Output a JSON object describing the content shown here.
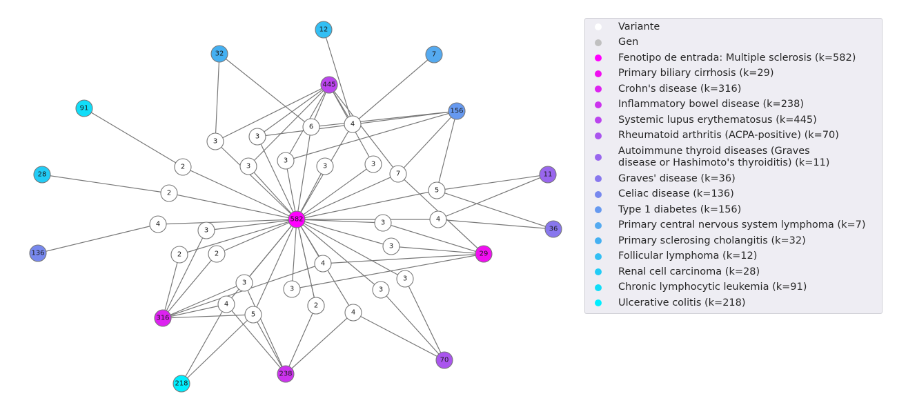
{
  "legend": {
    "items": [
      {
        "label": "Variante",
        "color": "#ffffff"
      },
      {
        "label": "Gen",
        "color": "#c0c0c0"
      },
      {
        "label": "Fenotipo de entrada: Multiple sclerosis (k=582)",
        "color": "#ff00ff"
      },
      {
        "label": "Primary biliary cirrhosis (k=29)",
        "color": "#f00ff0"
      },
      {
        "label": "Crohn's disease (k=316)",
        "color": "#dd22f0"
      },
      {
        "label": "Inflammatory bowel disease (k=238)",
        "color": "#cc33ee"
      },
      {
        "label": "Systemic lupus erythematosus (k=445)",
        "color": "#bb44ee"
      },
      {
        "label": "Rheumatoid arthritis (ACPA-positive) (k=70)",
        "color": "#aa55ee"
      },
      {
        "label": "Autoimmune thyroid diseases (Graves\ndisease or Hashimoto's thyroiditis) (k=11)",
        "color": "#9966ee"
      },
      {
        "label": "Graves' disease (k=36)",
        "color": "#8877ee"
      },
      {
        "label": "Celiac disease (k=136)",
        "color": "#7788ee"
      },
      {
        "label": "Type 1 diabetes (k=156)",
        "color": "#6699f0"
      },
      {
        "label": "Primary central nervous system lymphoma (k=7)",
        "color": "#55aaf0"
      },
      {
        "label": "Primary sclerosing cholangitis (k=32)",
        "color": "#44b0f2"
      },
      {
        "label": "Follicular lymphoma (k=12)",
        "color": "#33bff4"
      },
      {
        "label": "Renal cell carcinoma (k=28)",
        "color": "#22ccf6"
      },
      {
        "label": "Chronic lymphocytic leukemia (k=91)",
        "color": "#11ddf8"
      },
      {
        "label": "Ulcerative colitis (k=218)",
        "color": "#00eeff"
      }
    ]
  },
  "graph": {
    "phenotypes": [
      {
        "id": "P582",
        "label": "582",
        "color": "#ff00ff"
      },
      {
        "id": "P29",
        "label": "29",
        "color": "#f00ff0"
      },
      {
        "id": "P316",
        "label": "316",
        "color": "#dd22f0"
      },
      {
        "id": "P238",
        "label": "238",
        "color": "#cc33ee"
      },
      {
        "id": "P445",
        "label": "445",
        "color": "#bb44ee"
      },
      {
        "id": "P70",
        "label": "70",
        "color": "#aa55ee"
      },
      {
        "id": "P11",
        "label": "11",
        "color": "#9966ee"
      },
      {
        "id": "P36",
        "label": "36",
        "color": "#8877ee"
      },
      {
        "id": "P136",
        "label": "136",
        "color": "#7788ee"
      },
      {
        "id": "P156",
        "label": "156",
        "color": "#6699f0"
      },
      {
        "id": "P7",
        "label": "7",
        "color": "#55aaf0"
      },
      {
        "id": "P32",
        "label": "32",
        "color": "#44b0f2"
      },
      {
        "id": "P12",
        "label": "12",
        "color": "#33bff4"
      },
      {
        "id": "P28",
        "label": "28",
        "color": "#22ccf6"
      },
      {
        "id": "P91",
        "label": "91",
        "color": "#11ddf8"
      },
      {
        "id": "P218",
        "label": "218",
        "color": "#00eeff"
      }
    ],
    "variants": [
      {
        "id": "V1",
        "label": "6"
      },
      {
        "id": "V2",
        "label": "4"
      },
      {
        "id": "V3",
        "label": "3"
      },
      {
        "id": "V4",
        "label": "3"
      },
      {
        "id": "V5",
        "label": "3"
      },
      {
        "id": "V6",
        "label": "3"
      },
      {
        "id": "V7",
        "label": "3"
      },
      {
        "id": "V8",
        "label": "3"
      },
      {
        "id": "V9",
        "label": "7"
      },
      {
        "id": "V10",
        "label": "2"
      },
      {
        "id": "V11",
        "label": "2"
      },
      {
        "id": "V12",
        "label": "5"
      },
      {
        "id": "V13",
        "label": "4"
      },
      {
        "id": "V14",
        "label": "3"
      },
      {
        "id": "V15",
        "label": "3"
      },
      {
        "id": "V16",
        "label": "4"
      },
      {
        "id": "V17",
        "label": "3"
      },
      {
        "id": "V18",
        "label": "2"
      },
      {
        "id": "V19",
        "label": "2"
      },
      {
        "id": "V20",
        "label": "3"
      },
      {
        "id": "V21",
        "label": "4"
      },
      {
        "id": "V22",
        "label": "3"
      },
      {
        "id": "V23",
        "label": "3"
      },
      {
        "id": "V24",
        "label": "4"
      },
      {
        "id": "V25",
        "label": "3"
      },
      {
        "id": "V26",
        "label": "2"
      },
      {
        "id": "V27",
        "label": "2"
      },
      {
        "id": "V28",
        "label": "4"
      },
      {
        "id": "V29",
        "label": "5"
      }
    ],
    "edges": [
      [
        "P582",
        "V1"
      ],
      [
        "P582",
        "V2"
      ],
      [
        "P582",
        "V3"
      ],
      [
        "P582",
        "V4"
      ],
      [
        "P582",
        "V5"
      ],
      [
        "P582",
        "V6"
      ],
      [
        "P582",
        "V7"
      ],
      [
        "P582",
        "V8"
      ],
      [
        "P582",
        "V9"
      ],
      [
        "P582",
        "V10"
      ],
      [
        "P582",
        "V11"
      ],
      [
        "P582",
        "V12"
      ],
      [
        "P582",
        "V13"
      ],
      [
        "P582",
        "V14"
      ],
      [
        "P582",
        "V15"
      ],
      [
        "P582",
        "V16"
      ],
      [
        "P582",
        "V17"
      ],
      [
        "P582",
        "V18"
      ],
      [
        "P582",
        "V19"
      ],
      [
        "P582",
        "V20"
      ],
      [
        "P582",
        "V21"
      ],
      [
        "P582",
        "V22"
      ],
      [
        "P582",
        "V23"
      ],
      [
        "P582",
        "V24"
      ],
      [
        "P582",
        "V25"
      ],
      [
        "P582",
        "V26"
      ],
      [
        "P582",
        "V27"
      ],
      [
        "P582",
        "V28"
      ],
      [
        "P582",
        "V29"
      ],
      [
        "V1",
        "P445"
      ],
      [
        "V1",
        "P32"
      ],
      [
        "V1",
        "P156"
      ],
      [
        "V2",
        "P12"
      ],
      [
        "V2",
        "P7"
      ],
      [
        "V2",
        "P445"
      ],
      [
        "V3",
        "P445"
      ],
      [
        "V3",
        "P32"
      ],
      [
        "V4",
        "P445"
      ],
      [
        "V4",
        "P156"
      ],
      [
        "V5",
        "P445"
      ],
      [
        "V5",
        "P156"
      ],
      [
        "V6",
        "P445"
      ],
      [
        "V8",
        "P445"
      ],
      [
        "V9",
        "P156"
      ],
      [
        "V9",
        "P445"
      ],
      [
        "V9",
        "P29"
      ],
      [
        "V10",
        "P91"
      ],
      [
        "V11",
        "P28"
      ],
      [
        "V12",
        "P156"
      ],
      [
        "V12",
        "P11"
      ],
      [
        "V12",
        "P36"
      ],
      [
        "V13",
        "P136"
      ],
      [
        "V14",
        "P316"
      ],
      [
        "V15",
        "P29"
      ],
      [
        "V16",
        "P11"
      ],
      [
        "V16",
        "P36"
      ],
      [
        "V17",
        "P29"
      ],
      [
        "V18",
        "P316"
      ],
      [
        "V19",
        "P316"
      ],
      [
        "V20",
        "P316"
      ],
      [
        "V20",
        "P238"
      ],
      [
        "V21",
        "P29"
      ],
      [
        "V21",
        "P316"
      ],
      [
        "V22",
        "P70"
      ],
      [
        "V23",
        "P70"
      ],
      [
        "V24",
        "P316"
      ],
      [
        "V24",
        "P218"
      ],
      [
        "V24",
        "P238"
      ],
      [
        "V25",
        "P29"
      ],
      [
        "V26",
        "P238"
      ],
      [
        "V28",
        "P70"
      ],
      [
        "V28",
        "P238"
      ],
      [
        "V29",
        "P218"
      ],
      [
        "V29",
        "P238"
      ],
      [
        "V29",
        "P316"
      ]
    ]
  }
}
